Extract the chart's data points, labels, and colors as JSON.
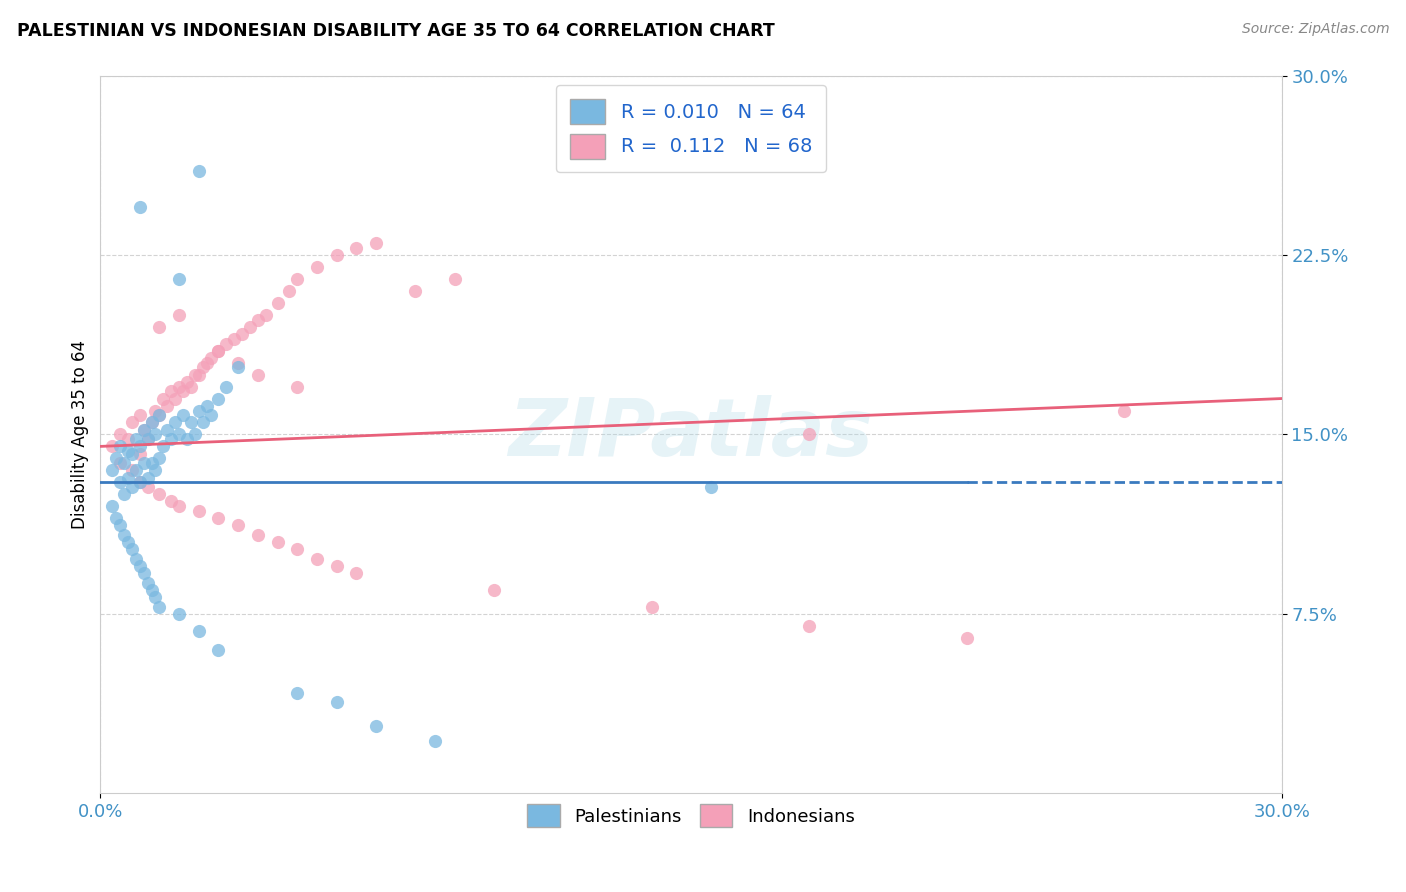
{
  "title": "PALESTINIAN VS INDONESIAN DISABILITY AGE 35 TO 64 CORRELATION CHART",
  "source": "Source: ZipAtlas.com",
  "ylabel": "Disability Age 35 to 64",
  "ytick_labels": [
    "7.5%",
    "15.0%",
    "22.5%",
    "30.0%"
  ],
  "ytick_values": [
    0.075,
    0.15,
    0.225,
    0.3
  ],
  "xmin": 0.0,
  "xmax": 0.3,
  "ymin": 0.0,
  "ymax": 0.3,
  "watermark": "ZIPatlas",
  "blue_color": "#7ab8e0",
  "pink_color": "#f4a0b8",
  "blue_line_color": "#3a7abf",
  "pink_line_color": "#e8607a",
  "legend_blue_label": "R = 0.010  N = 64",
  "legend_pink_label": "R =  0.112  N = 68",
  "blue_R": 0.01,
  "pink_R": 0.112,
  "blue_N": 64,
  "pink_N": 68,
  "palestinians_x": [
    0.003,
    0.004,
    0.005,
    0.005,
    0.006,
    0.006,
    0.007,
    0.007,
    0.008,
    0.008,
    0.009,
    0.009,
    0.01,
    0.01,
    0.011,
    0.011,
    0.012,
    0.012,
    0.013,
    0.013,
    0.014,
    0.014,
    0.015,
    0.015,
    0.016,
    0.017,
    0.018,
    0.019,
    0.02,
    0.021,
    0.022,
    0.023,
    0.024,
    0.025,
    0.026,
    0.027,
    0.028,
    0.03,
    0.032,
    0.035,
    0.003,
    0.004,
    0.005,
    0.006,
    0.007,
    0.008,
    0.009,
    0.01,
    0.011,
    0.012,
    0.013,
    0.014,
    0.015,
    0.02,
    0.025,
    0.03,
    0.05,
    0.06,
    0.07,
    0.085,
    0.01,
    0.02,
    0.025,
    0.155
  ],
  "palestinians_y": [
    0.135,
    0.14,
    0.13,
    0.145,
    0.125,
    0.138,
    0.132,
    0.143,
    0.128,
    0.142,
    0.135,
    0.148,
    0.13,
    0.145,
    0.138,
    0.152,
    0.132,
    0.148,
    0.138,
    0.155,
    0.135,
    0.15,
    0.14,
    0.158,
    0.145,
    0.152,
    0.148,
    0.155,
    0.15,
    0.158,
    0.148,
    0.155,
    0.15,
    0.16,
    0.155,
    0.162,
    0.158,
    0.165,
    0.17,
    0.178,
    0.12,
    0.115,
    0.112,
    0.108,
    0.105,
    0.102,
    0.098,
    0.095,
    0.092,
    0.088,
    0.085,
    0.082,
    0.078,
    0.075,
    0.068,
    0.06,
    0.042,
    0.038,
    0.028,
    0.022,
    0.245,
    0.215,
    0.26,
    0.128
  ],
  "indonesians_x": [
    0.003,
    0.005,
    0.007,
    0.008,
    0.01,
    0.01,
    0.011,
    0.012,
    0.013,
    0.014,
    0.015,
    0.016,
    0.017,
    0.018,
    0.019,
    0.02,
    0.021,
    0.022,
    0.023,
    0.024,
    0.025,
    0.026,
    0.027,
    0.028,
    0.03,
    0.032,
    0.034,
    0.036,
    0.038,
    0.04,
    0.042,
    0.045,
    0.048,
    0.05,
    0.055,
    0.06,
    0.065,
    0.07,
    0.08,
    0.09,
    0.005,
    0.008,
    0.01,
    0.012,
    0.015,
    0.018,
    0.02,
    0.025,
    0.03,
    0.035,
    0.04,
    0.045,
    0.05,
    0.055,
    0.06,
    0.065,
    0.1,
    0.14,
    0.18,
    0.22,
    0.015,
    0.02,
    0.03,
    0.035,
    0.04,
    0.05,
    0.18,
    0.26
  ],
  "indonesians_y": [
    0.145,
    0.15,
    0.148,
    0.155,
    0.142,
    0.158,
    0.152,
    0.148,
    0.155,
    0.16,
    0.158,
    0.165,
    0.162,
    0.168,
    0.165,
    0.17,
    0.168,
    0.172,
    0.17,
    0.175,
    0.175,
    0.178,
    0.18,
    0.182,
    0.185,
    0.188,
    0.19,
    0.192,
    0.195,
    0.198,
    0.2,
    0.205,
    0.21,
    0.215,
    0.22,
    0.225,
    0.228,
    0.23,
    0.21,
    0.215,
    0.138,
    0.135,
    0.13,
    0.128,
    0.125,
    0.122,
    0.12,
    0.118,
    0.115,
    0.112,
    0.108,
    0.105,
    0.102,
    0.098,
    0.095,
    0.092,
    0.085,
    0.078,
    0.07,
    0.065,
    0.195,
    0.2,
    0.185,
    0.18,
    0.175,
    0.17,
    0.15,
    0.16
  ]
}
